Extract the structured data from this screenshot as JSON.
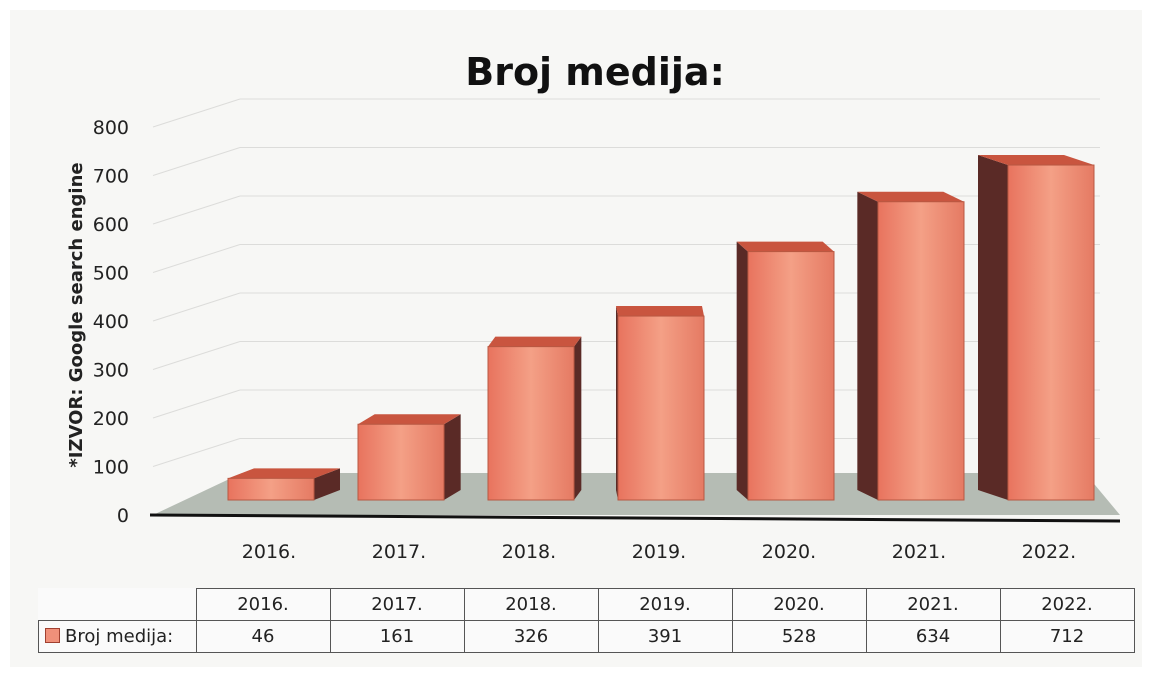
{
  "chart_data": {
    "type": "bar",
    "title": "Broj medija:",
    "ylabel": "*IZVOR: Google search engine",
    "xlabel": "",
    "categories": [
      "2016.",
      "2017.",
      "2018.",
      "2019.",
      "2020.",
      "2021.",
      "2022."
    ],
    "series": [
      {
        "name": "Broj medija:",
        "values": [
          46,
          161,
          326,
          391,
          528,
          634,
          712
        ]
      }
    ],
    "ylim": [
      0,
      800
    ],
    "yticks": [
      0,
      100,
      200,
      300,
      400,
      500,
      600,
      700,
      800
    ],
    "grid": true,
    "style": "3d-column",
    "colors": {
      "bar": "#f0907a",
      "bar_dark": "#5a2a26",
      "floor": "#b5bcb4"
    },
    "table": {
      "show": true
    }
  }
}
